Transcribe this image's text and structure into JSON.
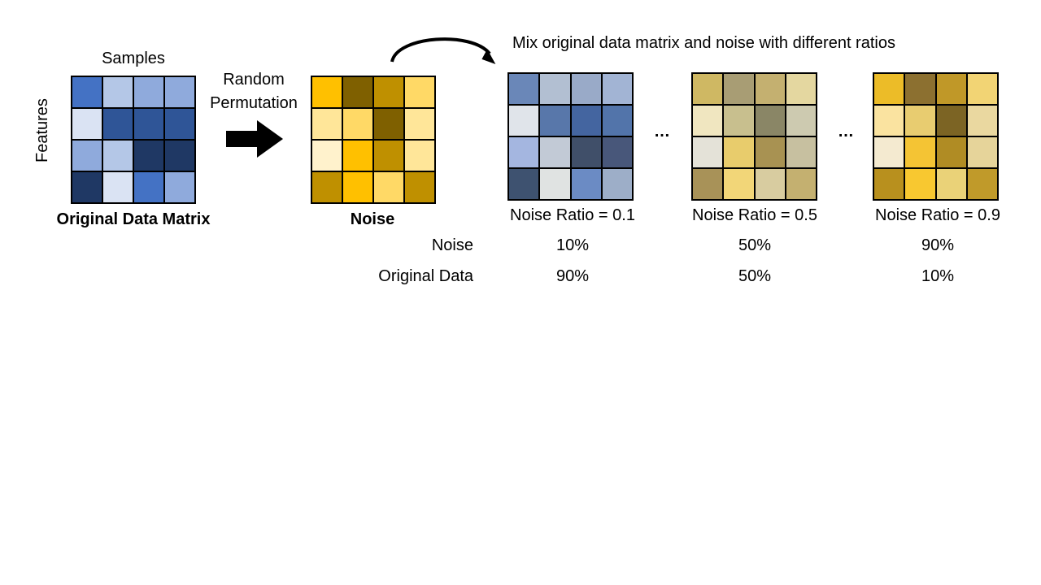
{
  "original": {
    "top_label": "Samples",
    "side_label": "Features",
    "title": "Original Data Matrix",
    "colors": [
      "#4472c4",
      "#b4c7e7",
      "#8faadc",
      "#8faadc",
      "#dae3f3",
      "#2f5597",
      "#2f5597",
      "#2f5597",
      "#8faadc",
      "#b4c7e7",
      "#1f3864",
      "#1f3864",
      "#1f3864",
      "#dae3f3",
      "#4472c4",
      "#8faadc"
    ]
  },
  "permutation": {
    "label_line1": "Random",
    "label_line2": "Permutation"
  },
  "noise": {
    "title": "Noise",
    "colors": [
      "#ffc000",
      "#7f6000",
      "#bf9000",
      "#ffd966",
      "#ffe699",
      "#ffd966",
      "#7f6000",
      "#ffe699",
      "#fff2cc",
      "#ffc000",
      "#bf9000",
      "#ffe699",
      "#bf9000",
      "#ffc000",
      "#ffd966",
      "#bf9000"
    ]
  },
  "mix_caption": "Mix original data matrix and noise with different ratios",
  "ellipsis": "…",
  "mixes": [
    {
      "ratio_label": "Noise Ratio = 0.1",
      "noise_pct": "10%",
      "original_pct": "90%",
      "colors": [
        "#6a87b8",
        "#b2bfd2",
        "#99aac8",
        "#a2b4d4",
        "#e0e4ea",
        "#5877aa",
        "#4465a0",
        "#5274aa",
        "#a4b6e0",
        "#c2cad6",
        "#404f69",
        "#48577a",
        "#3e5270",
        "#e0e3e2",
        "#6b8bc4",
        "#9daec8"
      ]
    },
    {
      "ratio_label": "Noise Ratio = 0.5",
      "noise_pct": "50%",
      "original_pct": "50%",
      "colors": [
        "#cfb863",
        "#a89d74",
        "#c4b070",
        "#e4d7a0",
        "#f0e6c0",
        "#c8bf8e",
        "#8a8666",
        "#cdcab0",
        "#e4e2d8",
        "#e8cc6c",
        "#a89252",
        "#c7c0a0",
        "#a89258",
        "#f2d678",
        "#d8cca0",
        "#c4b070"
      ]
    },
    {
      "ratio_label": "Noise Ratio = 0.9",
      "noise_pct": "90%",
      "original_pct": "10%",
      "colors": [
        "#ecbc28",
        "#8c7030",
        "#c09828",
        "#f2d474",
        "#fae3a0",
        "#e8cc70",
        "#7c6424",
        "#ead8a0",
        "#f4ead0",
        "#f4c434",
        "#b08c24",
        "#e6d49a",
        "#b8901e",
        "#f8c830",
        "#ead278",
        "#c09a2a"
      ]
    }
  ],
  "row_labels": {
    "noise": "Noise",
    "original": "Original Data"
  }
}
